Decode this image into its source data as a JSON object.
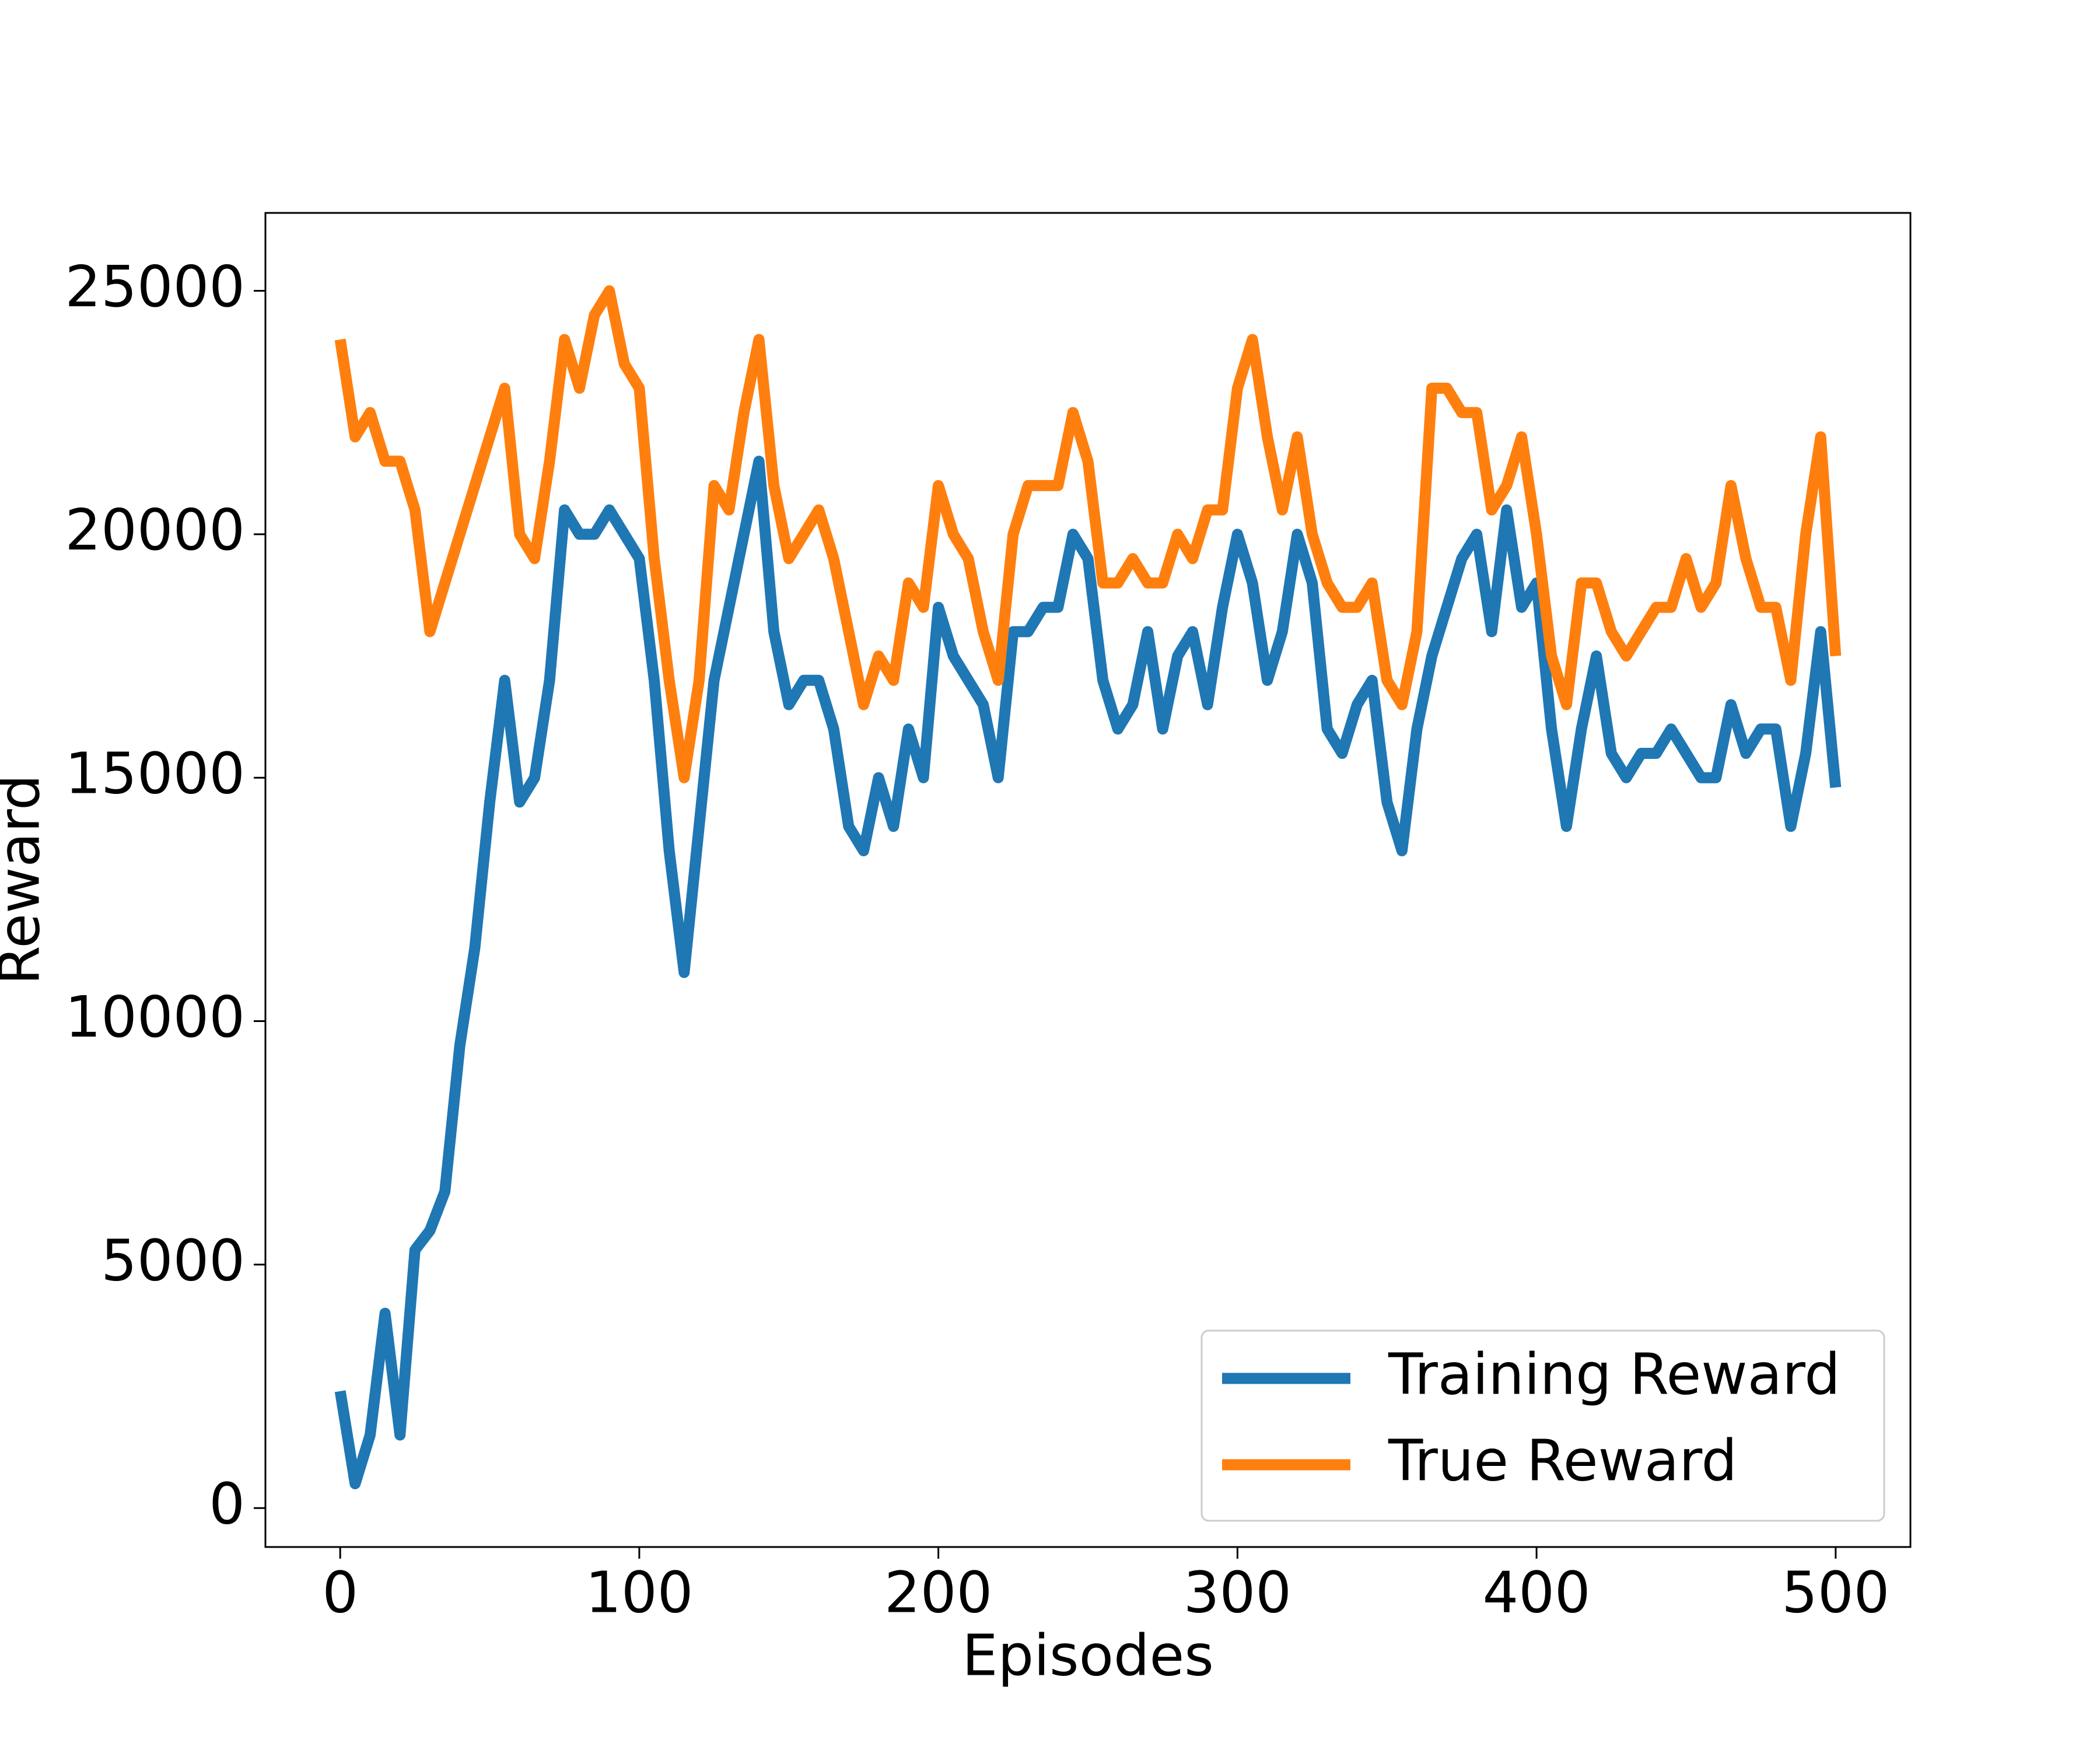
{
  "chart_data": {
    "type": "line",
    "x_label": "Episodes",
    "y_label": "Reward",
    "x": [
      0,
      5,
      10,
      15,
      20,
      25,
      30,
      35,
      40,
      45,
      50,
      55,
      60,
      65,
      70,
      75,
      80,
      85,
      90,
      95,
      100,
      105,
      110,
      115,
      120,
      125,
      130,
      135,
      140,
      145,
      150,
      155,
      160,
      165,
      170,
      175,
      180,
      185,
      190,
      195,
      200,
      205,
      210,
      215,
      220,
      225,
      230,
      235,
      240,
      245,
      250,
      255,
      260,
      265,
      270,
      275,
      280,
      285,
      290,
      295,
      300,
      305,
      310,
      315,
      320,
      325,
      330,
      335,
      340,
      345,
      350,
      355,
      360,
      365,
      370,
      375,
      380,
      385,
      390,
      395,
      400,
      405,
      410,
      415,
      420,
      425,
      430,
      435,
      440,
      445,
      450,
      455,
      460,
      465,
      470,
      475,
      480,
      485,
      490,
      495,
      500
    ],
    "series": [
      {
        "name": "Training Reward",
        "color": "#1f77b4",
        "values": [
          2400,
          500,
          1500,
          4000,
          1500,
          5300,
          5700,
          6500,
          9500,
          11500,
          14500,
          17000,
          14500,
          15000,
          17000,
          20500,
          20000,
          20000,
          20500,
          20000,
          19500,
          17000,
          13500,
          11000,
          14000,
          17000,
          18500,
          20000,
          21500,
          18000,
          16500,
          17000,
          17000,
          16000,
          14000,
          13500,
          15000,
          14000,
          16000,
          15000,
          18500,
          17500,
          17000,
          16500,
          15000,
          18000,
          18000,
          18500,
          18500,
          20000,
          19500,
          17000,
          16000,
          16500,
          18000,
          16000,
          17500,
          18000,
          16500,
          18500,
          20000,
          19000,
          17000,
          18000,
          20000,
          19000,
          16000,
          15500,
          16500,
          17000,
          14500,
          13500,
          16000,
          17500,
          18500,
          19500,
          20000,
          18000,
          20500,
          18500,
          19000,
          16000,
          14000,
          16000,
          17500,
          15500,
          15000,
          15500,
          15500,
          16000,
          15500,
          15000,
          15000,
          16500,
          15500,
          16000,
          16000,
          14000,
          15500,
          18000,
          14800
        ]
      },
      {
        "name": "True Reward",
        "color": "#ff7f0e",
        "values": [
          24000,
          22000,
          22500,
          21500,
          21500,
          20500,
          18000,
          19000,
          20000,
          21000,
          22000,
          23000,
          20000,
          19500,
          21500,
          24000,
          23000,
          24500,
          25000,
          23500,
          23000,
          19500,
          17000,
          15000,
          17000,
          21000,
          20500,
          22500,
          24000,
          21000,
          19500,
          20000,
          20500,
          19500,
          18000,
          16500,
          17500,
          17000,
          19000,
          18500,
          21000,
          20000,
          19500,
          18000,
          17000,
          20000,
          21000,
          21000,
          21000,
          22500,
          21500,
          19000,
          19000,
          19500,
          19000,
          19000,
          20000,
          19500,
          20500,
          20500,
          23000,
          24000,
          22000,
          20500,
          22000,
          20000,
          19000,
          18500,
          18500,
          19000,
          17000,
          16500,
          18000,
          23000,
          23000,
          22500,
          22500,
          20500,
          21000,
          22000,
          20000,
          17500,
          16500,
          19000,
          19000,
          18000,
          17500,
          18000,
          18500,
          18500,
          19500,
          18500,
          19000,
          21000,
          19500,
          18500,
          18500,
          17000,
          20000,
          22000,
          17500
        ]
      }
    ],
    "xlim": [
      -25,
      525
    ],
    "ylim": [
      -800,
      26600
    ],
    "xticks": [
      0,
      100,
      200,
      300,
      400,
      500
    ],
    "yticks": [
      0,
      5000,
      10000,
      15000,
      20000,
      25000
    ],
    "legend": "lower right",
    "grid": false
  }
}
